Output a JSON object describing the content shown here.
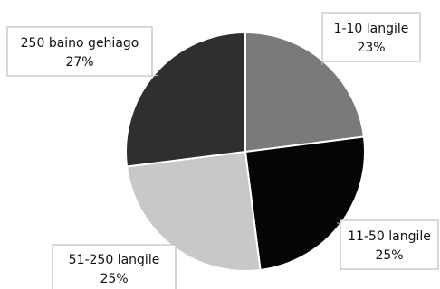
{
  "chart_data": {
    "type": "pie",
    "slices": [
      {
        "label": "1-10 langile",
        "value": 23,
        "value_label": "23%",
        "color": "#7a7a7a"
      },
      {
        "label": "11-50 langile",
        "value": 25,
        "value_label": "25%",
        "color": "#050505"
      },
      {
        "label": "51-250 langile",
        "value": 25,
        "value_label": "25%",
        "color": "#c8c8c8"
      },
      {
        "label": "250 baino gehiago",
        "value": 27,
        "value_label": "27%",
        "color": "#2f2f2f"
      }
    ],
    "start_angle": "12 o'clock",
    "direction": "clockwise",
    "legend": "none",
    "data_labels": "callout boxes with category and percent"
  }
}
